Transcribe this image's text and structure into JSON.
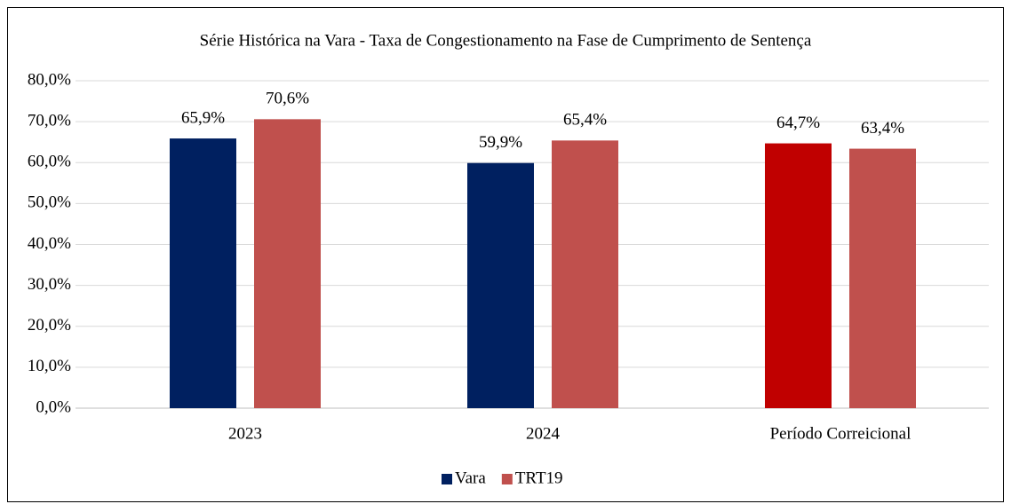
{
  "chart_data": {
    "type": "bar",
    "title": "Série Histórica na Vara - Taxa de Congestionamento na Fase de Cumprimento de Sentença",
    "categories": [
      "2023",
      "2024",
      "Período Correicional"
    ],
    "series": [
      {
        "name": "Vara",
        "color": "#002060",
        "colors": [
          "#002060",
          "#002060",
          "#c00000"
        ],
        "values": [
          65.9,
          59.9,
          64.7
        ],
        "value_labels": [
          "65,9%",
          "59,9%",
          "64,7%"
        ]
      },
      {
        "name": "TRT19",
        "color": "#c0504d",
        "values": [
          70.6,
          65.4,
          63.4
        ],
        "value_labels": [
          "70,6%",
          "65,4%",
          "63,4%"
        ]
      }
    ],
    "ylim": [
      0,
      80
    ],
    "yticks": [
      {
        "value": 0,
        "label": "0,0%"
      },
      {
        "value": 10,
        "label": "10,0%"
      },
      {
        "value": 20,
        "label": "20,0%"
      },
      {
        "value": 30,
        "label": "30,0%"
      },
      {
        "value": 40,
        "label": "40,0%"
      },
      {
        "value": 50,
        "label": "50,0%"
      },
      {
        "value": 60,
        "label": "60,0%"
      },
      {
        "value": 70,
        "label": "70,0%"
      },
      {
        "value": 80,
        "label": "80,0%"
      }
    ],
    "grid": true,
    "legend": "bottom"
  }
}
